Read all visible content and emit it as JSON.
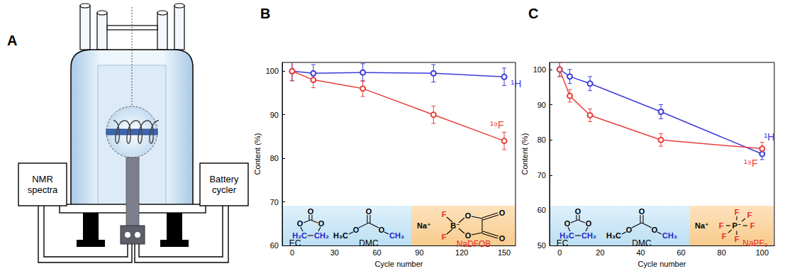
{
  "diagram": {
    "title": "A",
    "labels": [
      "NMR spectra",
      "Battery cycler"
    ]
  },
  "chart_data": [
    {
      "type": "line",
      "title": "B",
      "x_label": "Cycle number",
      "y_label": "Content (%)",
      "x": [
        0,
        15,
        50,
        100,
        150
      ],
      "xlim": [
        -7,
        158
      ],
      "xticks": [
        0,
        30,
        60,
        90,
        120,
        150
      ],
      "ylim": [
        60,
        102
      ],
      "yticks": [
        60,
        70,
        80,
        90,
        100
      ],
      "grid": false,
      "marker": "circle",
      "series": [
        {
          "name": "¹H",
          "color": "#3c3cdc",
          "values": [
            100,
            99.5,
            99.7,
            99.5,
            98.7
          ],
          "errors": [
            2.2,
            2,
            2,
            2,
            2
          ]
        },
        {
          "name": "¹⁹F",
          "color": "#e8403c",
          "values": [
            100,
            98,
            96,
            90,
            84
          ],
          "errors": [
            2.2,
            1.8,
            1.8,
            2,
            2
          ]
        }
      ],
      "annotations": {
        "solvents": [
          {
            "name": "EC",
            "atoms": [
              "O",
              "O",
              "O",
              "H₂C",
              "CH₂"
            ]
          },
          {
            "name": "DMC",
            "atoms": [
              "O",
              "H₃C",
              "O",
              "O",
              "CH₃"
            ]
          }
        ],
        "salt": {
          "name": "NaDFOB",
          "atoms": [
            "Na⁺",
            "B⁻",
            "F",
            "F",
            "O",
            "O",
            "O",
            "O"
          ]
        }
      }
    },
    {
      "type": "line",
      "title": "C",
      "x_label": "Cycle number",
      "y_label": "Content (%)",
      "x": [
        0,
        5,
        15,
        50,
        100
      ],
      "xlim": [
        -5,
        106
      ],
      "xticks": [
        0,
        20,
        40,
        60,
        80,
        100
      ],
      "ylim": [
        50,
        102
      ],
      "yticks": [
        50,
        60,
        70,
        80,
        90,
        100
      ],
      "grid": false,
      "marker": "circle",
      "series": [
        {
          "name": "¹H",
          "color": "#3c3cdc",
          "values": [
            100,
            98,
            96,
            88,
            76
          ],
          "errors": [
            2,
            2,
            2,
            2,
            1.6
          ]
        },
        {
          "name": "¹⁹F",
          "color": "#e8403c",
          "values": [
            100,
            92.5,
            87,
            80,
            77.5
          ],
          "errors": [
            2,
            1.8,
            1.8,
            1.8,
            1.8
          ]
        }
      ],
      "annotations": {
        "solvents": [
          {
            "name": "EC",
            "atoms": [
              "O",
              "O",
              "O",
              "H₂C",
              "CH₂"
            ]
          },
          {
            "name": "DMC",
            "atoms": [
              "O",
              "H₃C",
              "O",
              "O",
              "CH₃"
            ]
          }
        ],
        "salt": {
          "name": "NaPF₆",
          "atoms": [
            "Na⁺",
            "P⁻",
            "F",
            "F",
            "F",
            "F",
            "F",
            "F"
          ]
        }
      }
    }
  ]
}
